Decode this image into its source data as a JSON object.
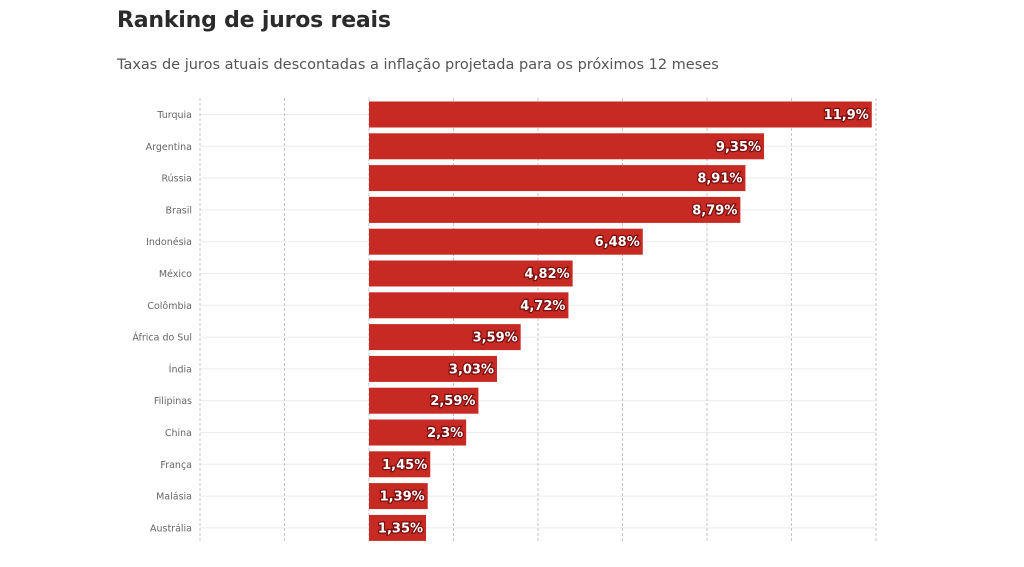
{
  "header": {
    "title": "Ranking de juros reais",
    "subtitle": "Taxas de juros atuais descontadas a inflação projetada para os próximos 12 meses"
  },
  "colors": {
    "bar": "#c62a22",
    "grid_vertical": "#c4c4c4",
    "grid_horizontal": "#ececec"
  },
  "chart_data": {
    "type": "bar",
    "orientation": "horizontal",
    "categories": [
      "Turquia",
      "Argentina",
      "Rússia",
      "Brasil",
      "Indonésia",
      "México",
      "Colômbia",
      "África do Sul",
      "Índia",
      "Filipinas",
      "China",
      "França",
      "Malásia",
      "Austrália"
    ],
    "values": [
      11.9,
      9.35,
      8.91,
      8.79,
      6.48,
      4.82,
      4.72,
      3.59,
      3.03,
      2.59,
      2.3,
      1.45,
      1.39,
      1.35
    ],
    "value_labels": [
      "11,9%",
      "9,35%",
      "8,91%",
      "8,79%",
      "6,48%",
      "4,82%",
      "4,72%",
      "3,59%",
      "3,03%",
      "2,59%",
      "2,3%",
      "1,45%",
      "1,39%",
      "1,35%"
    ],
    "title": "Ranking de juros reais",
    "subtitle": "Taxas de juros atuais descontadas a inflação projetada para os próximos 12 meses",
    "xlabel": "",
    "ylabel": "",
    "xlim": [
      -4,
      12
    ],
    "grid": true,
    "legend": "none"
  }
}
